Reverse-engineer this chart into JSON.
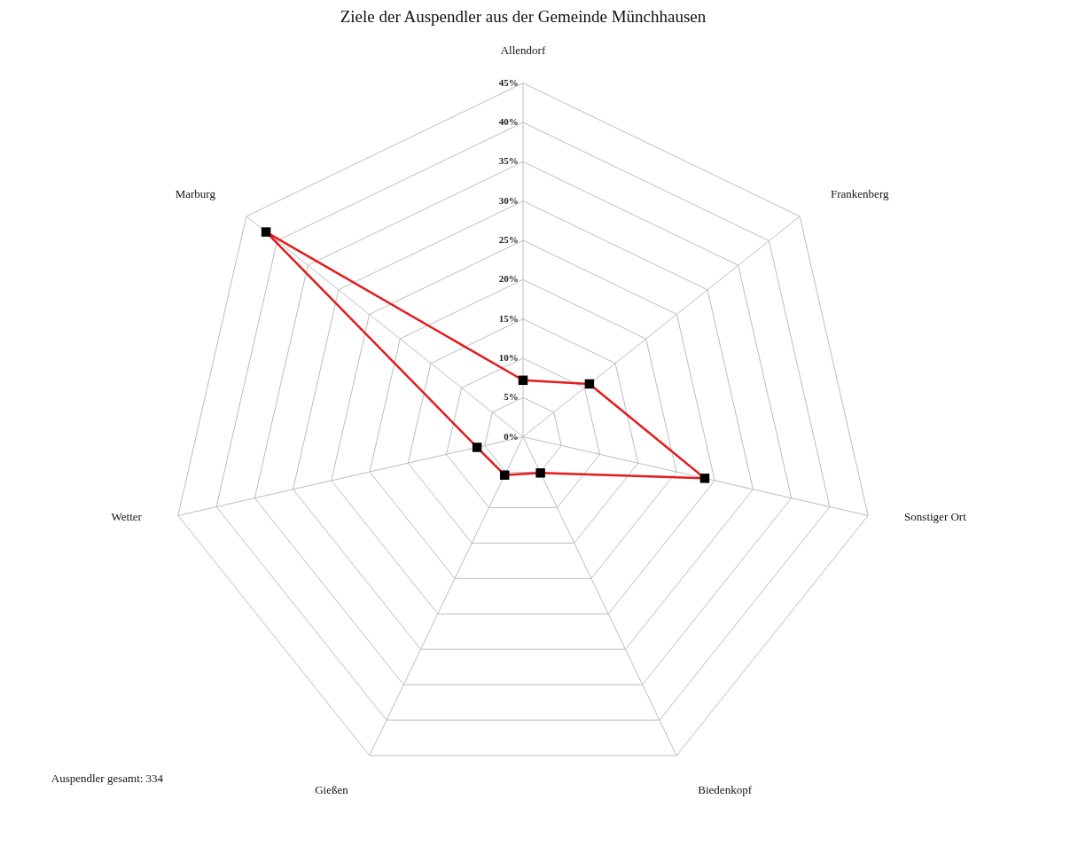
{
  "chart_data": {
    "type": "radar",
    "title": "Ziele der Auspendler aus der Gemeinde Münchhausen",
    "categories": [
      "Allendorf",
      "Frankenberg",
      "Sonstiger Ort",
      "Biedenkopf",
      "Gießen",
      "Wetter",
      "Marburg"
    ],
    "series": [
      {
        "color": "#e41a1c",
        "values": [
          7.2,
          10.8,
          23.7,
          5.1,
          5.4,
          6.0,
          41.8
        ]
      }
    ],
    "ylim": [
      0,
      45
    ],
    "yticks": [
      {
        "value": 0,
        "label": "0%"
      },
      {
        "value": 5,
        "label": "5%"
      },
      {
        "value": 10,
        "label": "10%"
      },
      {
        "value": 15,
        "label": "15%"
      },
      {
        "value": 20,
        "label": "20%"
      },
      {
        "value": 25,
        "label": "25%"
      },
      {
        "value": 30,
        "label": "30%"
      },
      {
        "value": 35,
        "label": "35%"
      },
      {
        "value": 40,
        "label": "40%"
      },
      {
        "value": 45,
        "label": "45%"
      }
    ],
    "grid": true,
    "marker": "square",
    "line_style": "solid",
    "annotations": [
      "Auspendler gesamt: 334"
    ]
  }
}
